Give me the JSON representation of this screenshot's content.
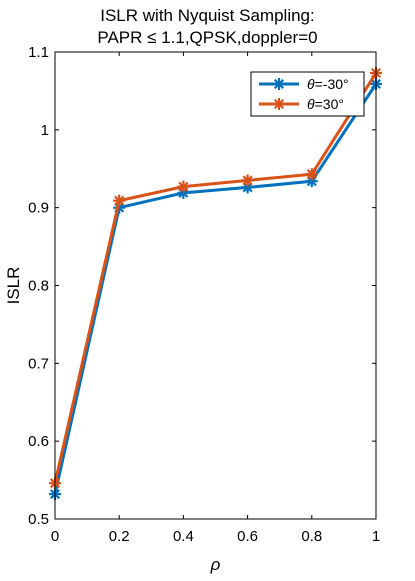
{
  "chart_data": {
    "type": "line",
    "title_line1": "ISLR with Nyquist Sampling:",
    "title_line2": "PAPR ≤ 1.1,QPSK,doppler=0",
    "xlabel": "ρ",
    "ylabel": "ISLR",
    "xlim": [
      0,
      1
    ],
    "ylim": [
      0.5,
      1.1
    ],
    "xticks": [
      0,
      0.2,
      0.4,
      0.6,
      0.8,
      1
    ],
    "xtick_labels": [
      "0",
      "0.2",
      "0.4",
      "0.6",
      "0.8",
      "1"
    ],
    "yticks": [
      0.5,
      0.6,
      0.7,
      0.8,
      0.9,
      1.0,
      1.1
    ],
    "ytick_labels": [
      "0.5",
      "0.6",
      "0.7",
      "0.8",
      "0.9",
      "1",
      "1.1"
    ],
    "grid": false,
    "legend_position": "top-right",
    "x": [
      0,
      0.2,
      0.4,
      0.6,
      0.8,
      1
    ],
    "series": [
      {
        "name": "θ=-30°",
        "name_prefix": "θ",
        "name_suffix": "=-30°",
        "color": "#0072BD",
        "marker": "asterisk",
        "values": [
          0.532,
          0.9,
          0.919,
          0.926,
          0.934,
          1.059
        ]
      },
      {
        "name": "θ=30°",
        "name_prefix": "θ",
        "name_suffix": "=30°",
        "color": "#D95319",
        "marker": "asterisk",
        "values": [
          0.546,
          0.909,
          0.927,
          0.935,
          0.943,
          1.073
        ]
      }
    ]
  }
}
